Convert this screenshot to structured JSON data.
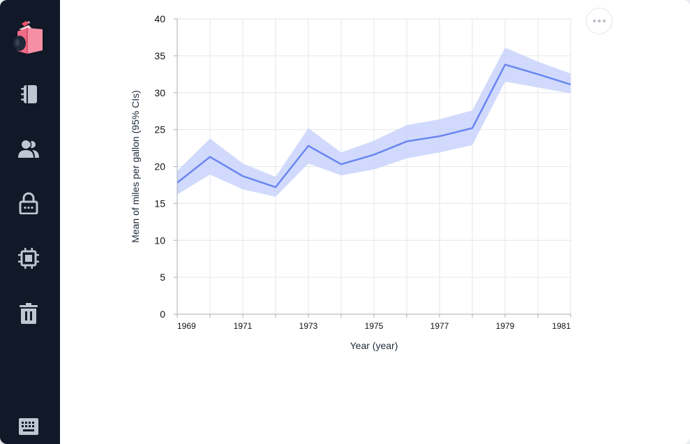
{
  "sidebar": {
    "items": [
      {
        "name": "notebook",
        "icon": "notebook-icon"
      },
      {
        "name": "users",
        "icon": "users-icon"
      },
      {
        "name": "secrets",
        "icon": "lock-icon"
      },
      {
        "name": "compute",
        "icon": "cpu-chip-icon"
      },
      {
        "name": "trash",
        "icon": "trash-icon"
      }
    ],
    "bottom_icon": "keyboard-icon"
  },
  "toolbar": {
    "more_icon": "more-horizontal-icon"
  },
  "colors": {
    "sidebar_bg": "#111827",
    "line": "#6b86f2",
    "band": "#c9d3fb",
    "grid": "#e3e6ea"
  },
  "chart_data": {
    "type": "line",
    "title": "",
    "xlabel": "Year (year)",
    "ylabel": "Mean of miles per gallon (95% CIs)",
    "xlim": [
      1969,
      1981
    ],
    "ylim": [
      0,
      40
    ],
    "x_ticks": [
      "1969",
      "1971",
      "1973",
      "1975",
      "1977",
      "1979",
      "1981"
    ],
    "y_ticks": [
      "0",
      "5",
      "10",
      "15",
      "20",
      "25",
      "30",
      "35",
      "40"
    ],
    "grid": true,
    "series": [
      {
        "name": "Mean of miles per gallon",
        "x": [
          1969,
          1970,
          1971,
          1972,
          1973,
          1974,
          1975,
          1976,
          1977,
          1978,
          1979,
          1980,
          1981
        ],
        "mean": [
          17.8,
          21.3,
          18.7,
          17.2,
          22.8,
          20.3,
          21.6,
          23.4,
          24.1,
          25.2,
          33.8,
          32.5,
          31.1
        ],
        "lower": [
          16.2,
          18.9,
          16.9,
          15.9,
          20.4,
          18.8,
          19.6,
          21.1,
          21.9,
          22.9,
          31.5,
          30.7,
          29.9
        ],
        "upper": [
          19.4,
          23.8,
          20.4,
          18.6,
          25.2,
          21.9,
          23.5,
          25.6,
          26.4,
          27.6,
          36.1,
          34.2,
          32.6
        ]
      }
    ]
  }
}
